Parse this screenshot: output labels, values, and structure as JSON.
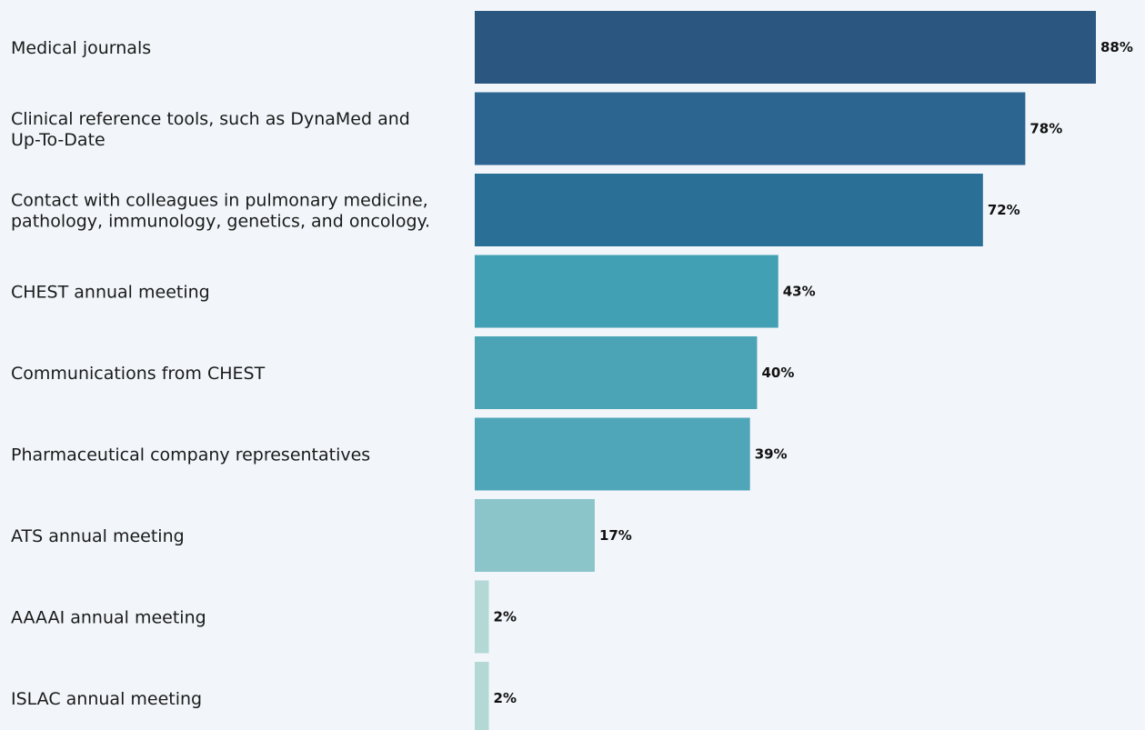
{
  "chart_data": {
    "type": "bar",
    "orientation": "horizontal",
    "categories": [
      [
        "Medical journals"
      ],
      [
        "Clinical reference tools, such as DynaMed and",
        "Up-To-Date"
      ],
      [
        "Contact with colleagues in pulmonary medicine,",
        "pathology, immunology, genetics, and oncology."
      ],
      [
        "CHEST annual meeting"
      ],
      [
        "Communications from CHEST"
      ],
      [
        "Pharmaceutical company representatives"
      ],
      [
        "ATS annual meeting"
      ],
      [
        "AAAAI annual meeting"
      ],
      [
        "ISLAC annual meeting"
      ]
    ],
    "values": [
      88,
      78,
      72,
      43,
      40,
      39,
      17,
      2,
      2
    ],
    "value_labels": [
      "88%",
      "78%",
      "72%",
      "43%",
      "40%",
      "39%",
      "17%",
      "2%",
      "2%"
    ],
    "colors": [
      "#2b5680",
      "#2c6590",
      "#296f96",
      "#42a0b5",
      "#4ba4b6",
      "#50a6b9",
      "#8bc5c9",
      "#b3d8d6",
      "#b3d8d6"
    ],
    "xlim": [
      0,
      88
    ],
    "grid": false,
    "legend": "none"
  }
}
